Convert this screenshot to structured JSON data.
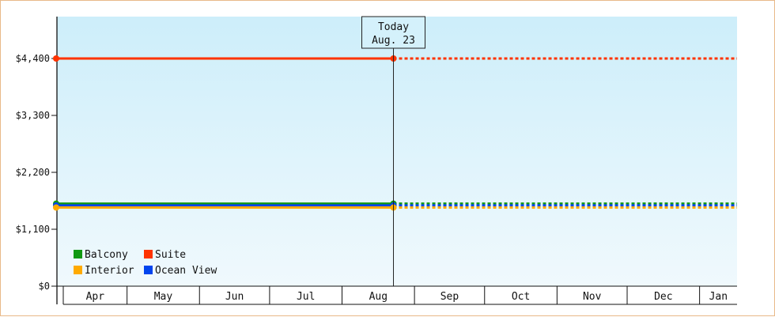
{
  "chart_data": {
    "type": "line",
    "x_months": [
      "Apr",
      "May",
      "Jun",
      "Jul",
      "Aug",
      "Sep",
      "Oct",
      "Nov",
      "Dec",
      "Jan"
    ],
    "yticks": [
      {
        "value": 0,
        "label": "$0"
      },
      {
        "value": 1100,
        "label": "$1,100"
      },
      {
        "value": 2200,
        "label": "$2,200"
      },
      {
        "value": 3300,
        "label": "$3,300"
      },
      {
        "value": 4400,
        "label": "$4,400"
      }
    ],
    "ylim": [
      0,
      4400
    ],
    "today": {
      "line1": "Today",
      "line2": "Aug. 23",
      "date": "2023-08-23"
    },
    "x_start": "2023-04-01",
    "x_end": "2024-01-15",
    "series": [
      {
        "name": "Suite",
        "color": "#ff3300",
        "value": 4400
      },
      {
        "name": "Balcony",
        "color": "#119911",
        "value": 1595
      },
      {
        "name": "Ocean View",
        "color": "#0044ee",
        "value": 1560
      },
      {
        "name": "Interior",
        "color": "#ffaa00",
        "value": 1520
      }
    ],
    "legend_order": [
      "Balcony",
      "Suite",
      "Interior",
      "Ocean View"
    ],
    "legend_placement": "bottom-left",
    "background_gradient": [
      "#cdeefa",
      "#f0f9fd"
    ]
  }
}
